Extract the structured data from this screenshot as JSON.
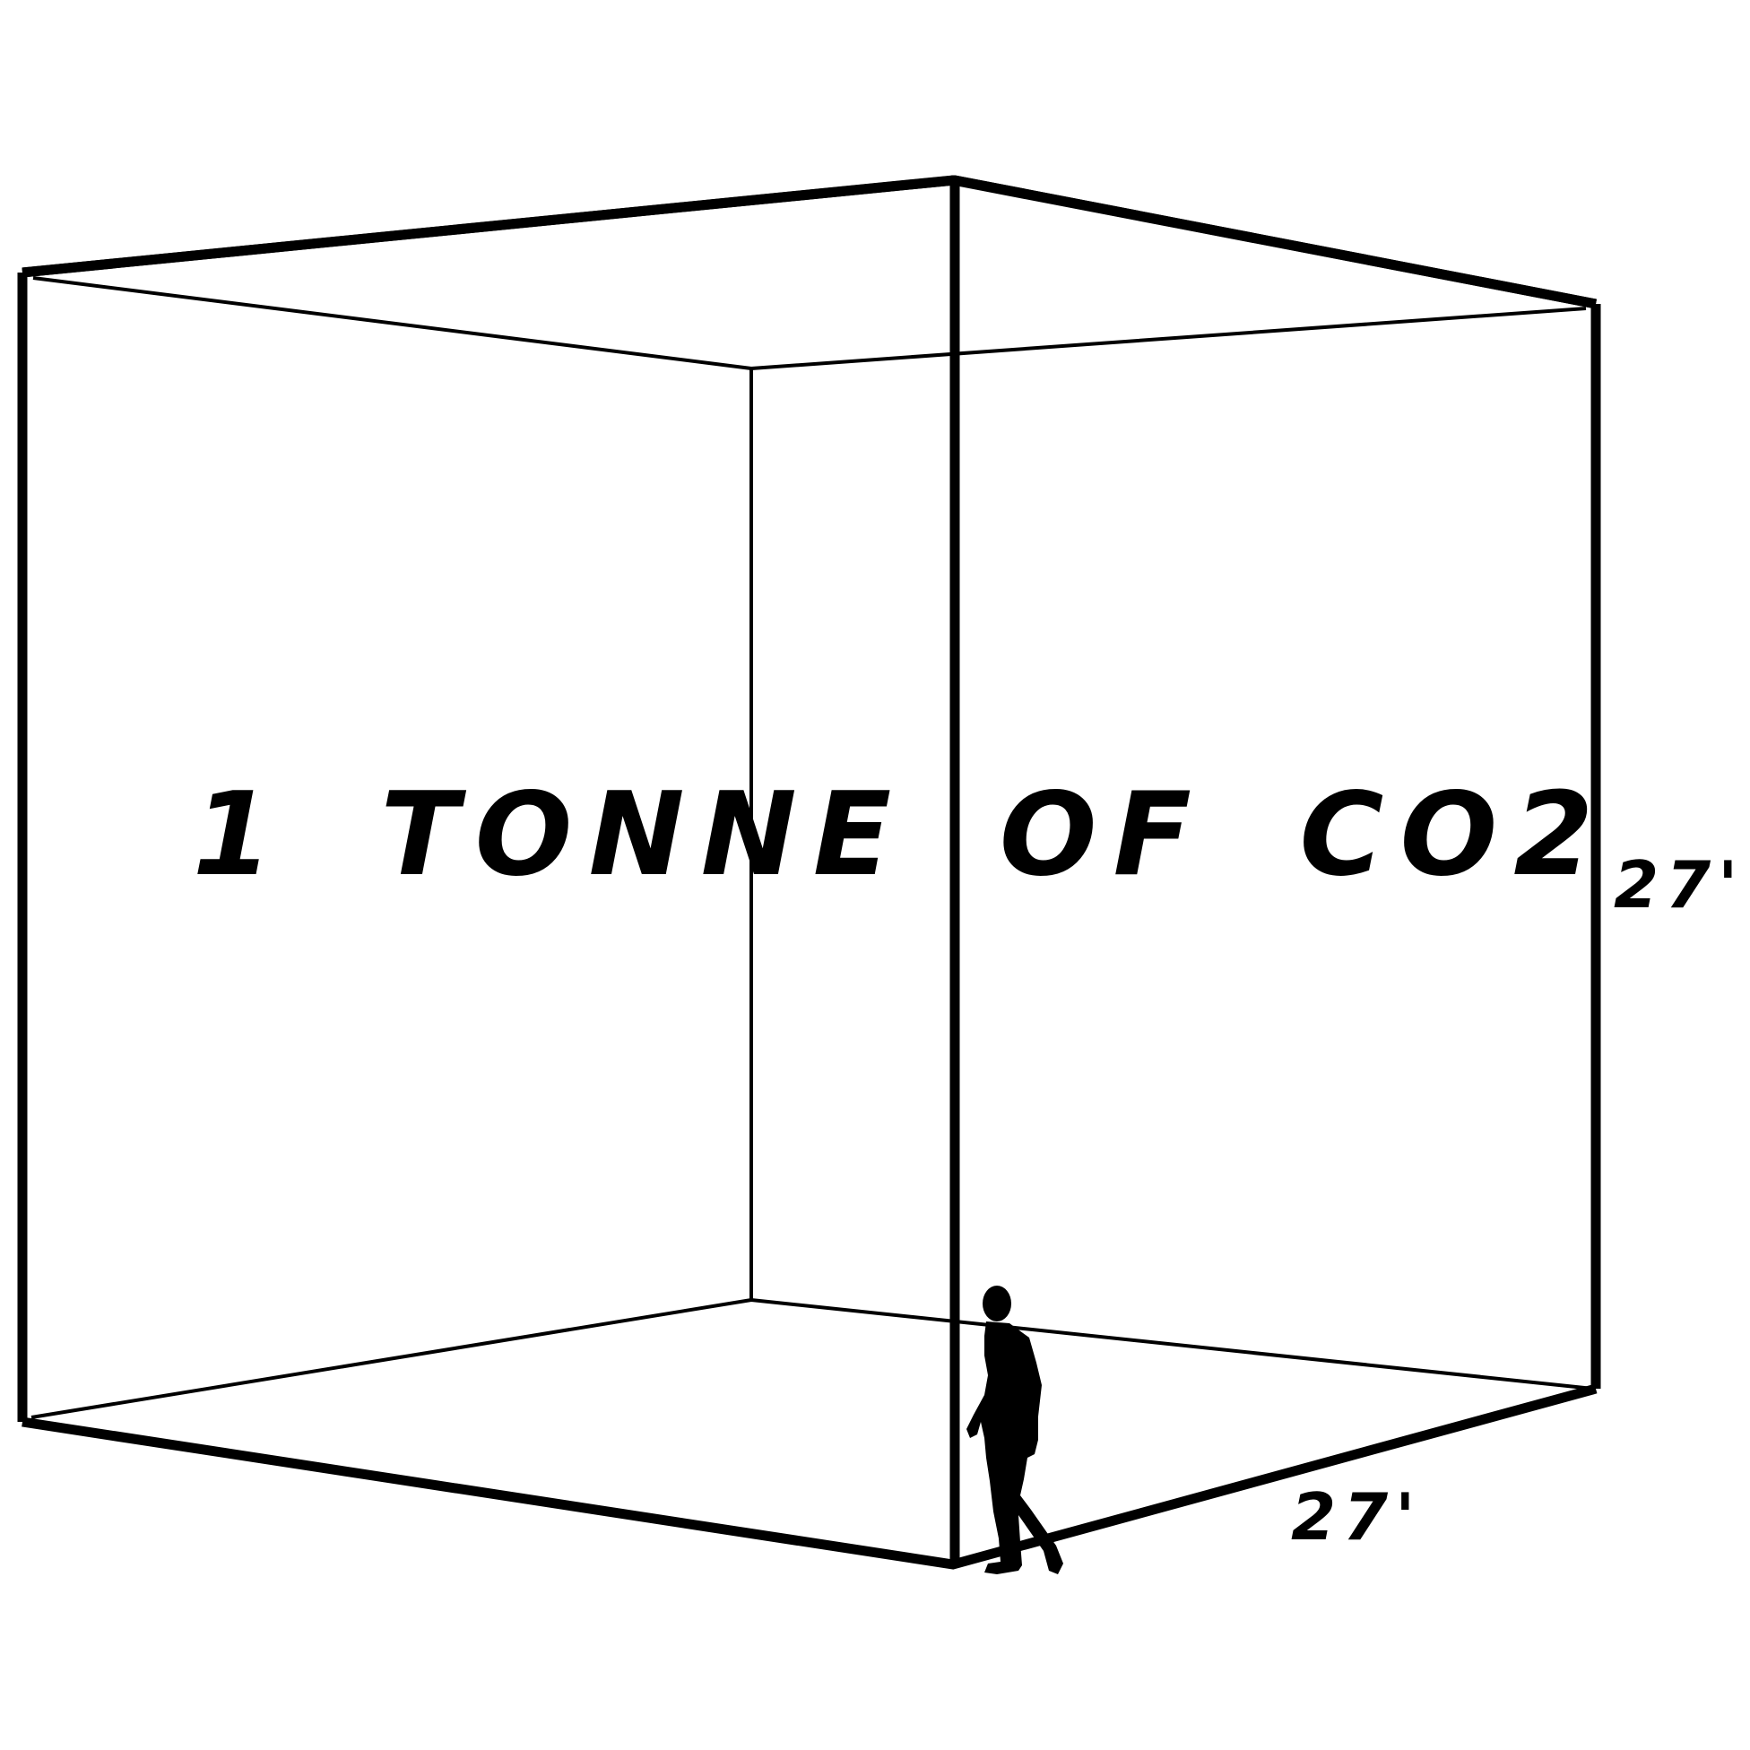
{
  "title": "1 TONNE OF CO2",
  "dimensions": {
    "height_label": "27'",
    "depth_label": "27'"
  },
  "colors": {
    "line": "#000000",
    "background": "#ffffff"
  },
  "figure": {
    "icon": "walking-person-silhouette"
  }
}
